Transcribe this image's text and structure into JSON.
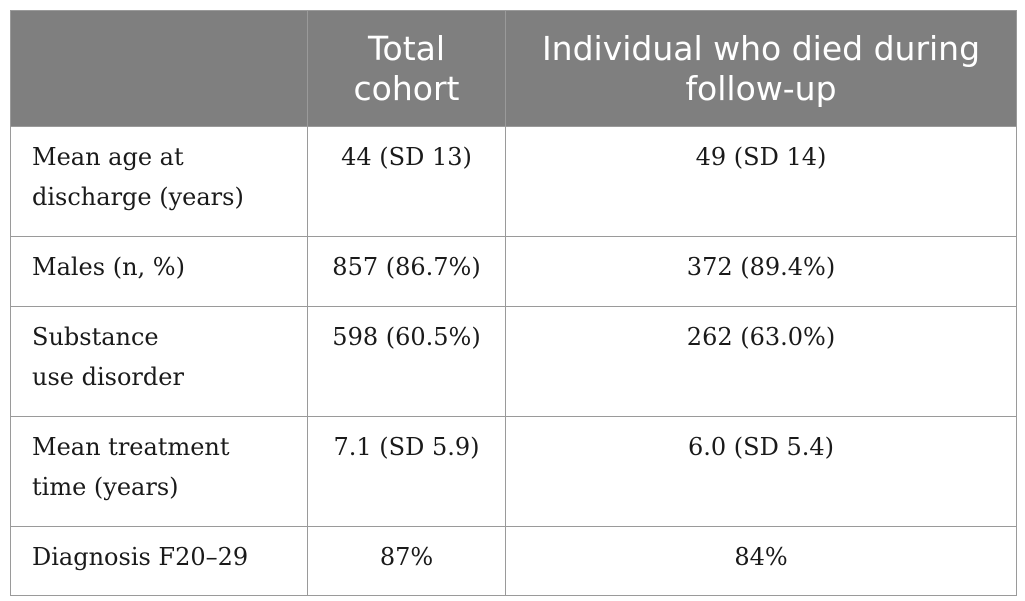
{
  "table": {
    "headers": [
      {
        "lines": [
          ""
        ]
      },
      {
        "lines": [
          "Total",
          "cohort"
        ]
      },
      {
        "lines": [
          "Individual who died during",
          "follow-up"
        ]
      }
    ],
    "rows": [
      {
        "label_lines": [
          "Mean age at",
          "discharge (years)"
        ],
        "total": "44 (SD 13)",
        "died": "49 (SD 14)"
      },
      {
        "label_lines": [
          "Males (n, %)"
        ],
        "total": "857 (86.7%)",
        "died": "372 (89.4%)"
      },
      {
        "label_lines": [
          "Substance",
          "use disorder"
        ],
        "total": "598 (60.5%)",
        "died": "262 (63.0%)"
      },
      {
        "label_lines": [
          "Mean treatment",
          "time (years)"
        ],
        "total": "7.1 (SD 5.9)",
        "died": "6.0 (SD 5.4)"
      },
      {
        "label_lines": [
          "Diagnosis F20–29"
        ],
        "total": "87%",
        "died": "84%"
      }
    ]
  }
}
